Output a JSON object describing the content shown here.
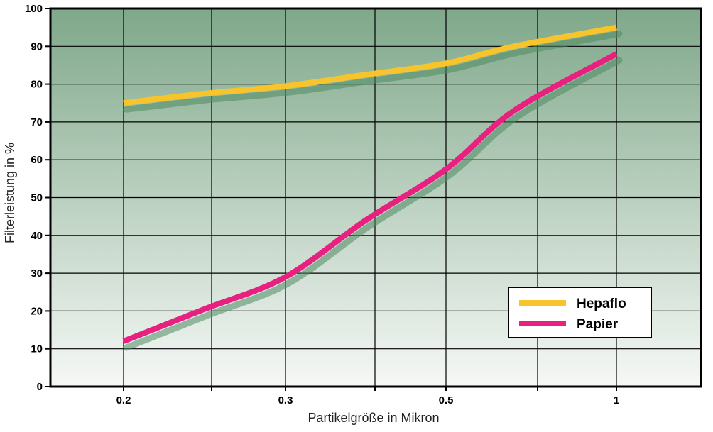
{
  "chart_data": {
    "type": "line",
    "xlabel": "Partikelgröße in Mikron",
    "ylabel": "Filterleistung in %",
    "x_ticks": [
      "0.2",
      "0.3",
      "0.5",
      "1"
    ],
    "y_ticks": [
      "0",
      "10",
      "20",
      "30",
      "40",
      "50",
      "60",
      "70",
      "80",
      "90",
      "100"
    ],
    "ylim": [
      0,
      100
    ],
    "grid": true,
    "legend_position": "bottom-right",
    "series": [
      {
        "name": "Hepaflo",
        "color": "#f7c52b",
        "points": [
          [
            0.2,
            75
          ],
          [
            0.25,
            77.5
          ],
          [
            0.3,
            79.5
          ],
          [
            0.4,
            82.5
          ],
          [
            0.5,
            85.5
          ],
          [
            0.7,
            90
          ],
          [
            1,
            95
          ]
        ]
      },
      {
        "name": "Papier",
        "color": "#e8207f",
        "points": [
          [
            0.2,
            12
          ],
          [
            0.25,
            20.5
          ],
          [
            0.3,
            29
          ],
          [
            0.4,
            44
          ],
          [
            0.5,
            57.5
          ],
          [
            0.7,
            73
          ],
          [
            1,
            88
          ]
        ]
      }
    ],
    "colors": {
      "background_top": "#7fa88a",
      "background_bottom": "#f6f8f6",
      "grid": "#000000",
      "shadow": "#4f8a62"
    }
  }
}
